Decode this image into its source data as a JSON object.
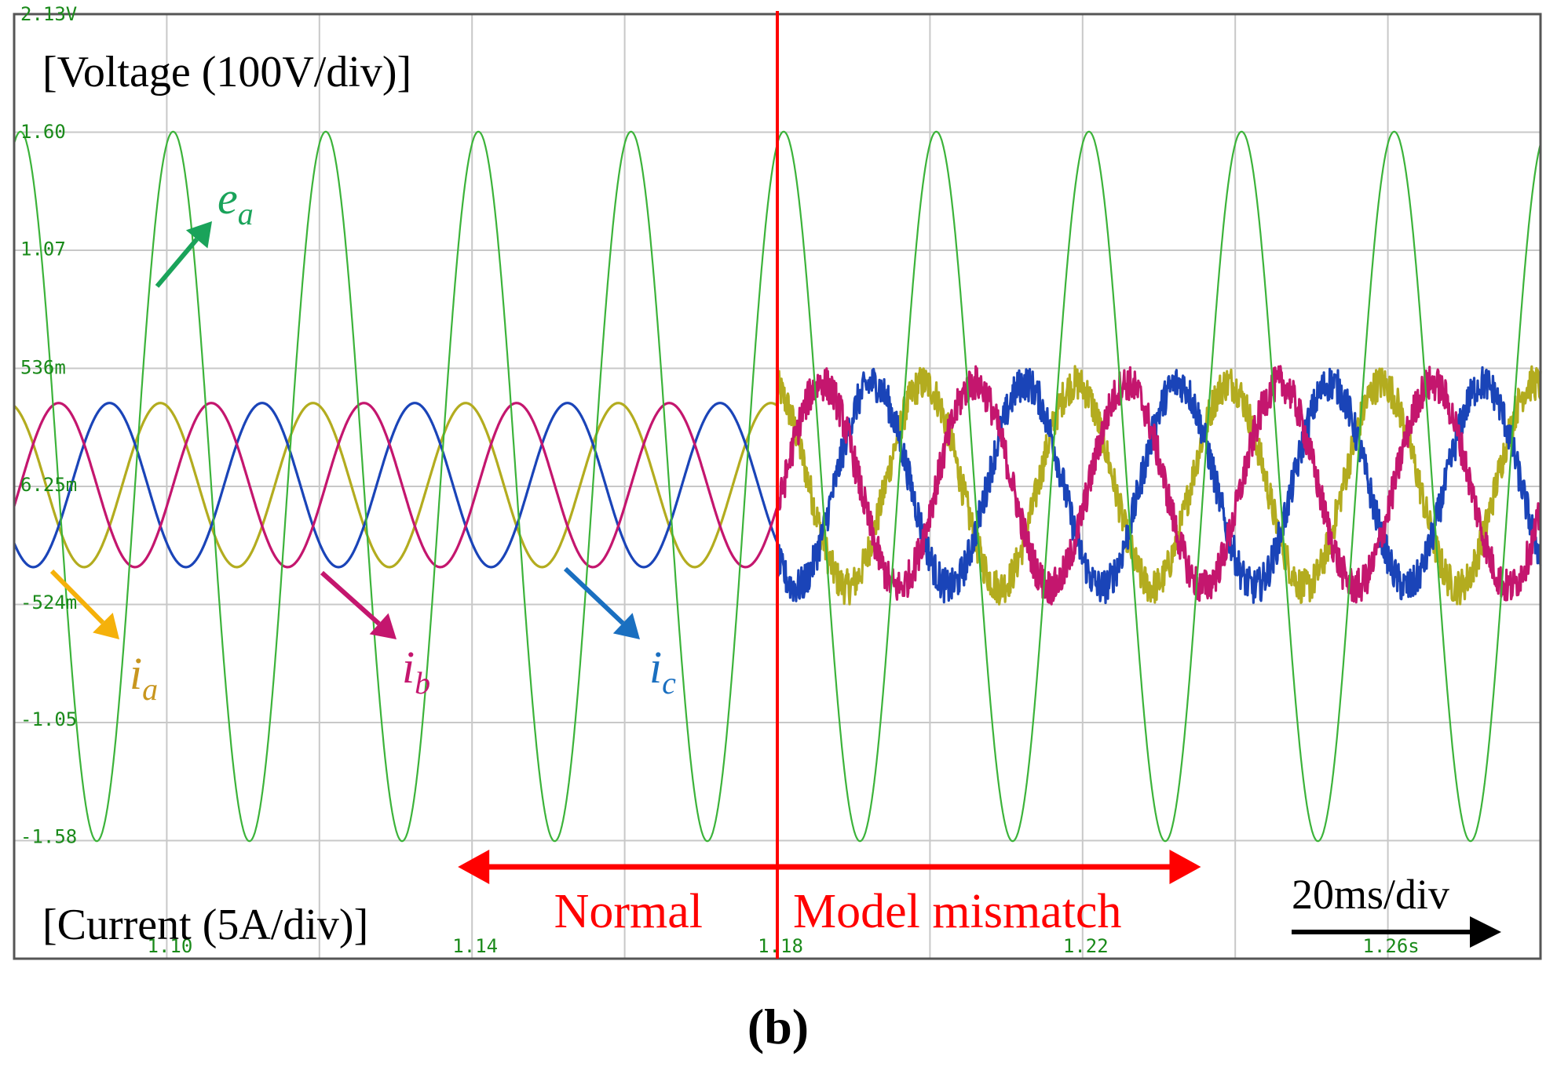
{
  "chart_data": {
    "type": "line",
    "title": "",
    "panel_label": "(b)",
    "voltage_scale_label": "[Voltage (100V/div)]",
    "current_scale_label": "[Current (5A/div)]",
    "time_scale_label": "20ms/div",
    "xlim": [
      1.08,
      1.28
    ],
    "ylim": [
      -2.13,
      2.13
    ],
    "x_ticks": [
      {
        "value": 1.1,
        "label": "1.10"
      },
      {
        "value": 1.14,
        "label": "1.14"
      },
      {
        "value": 1.18,
        "label": "1.18"
      },
      {
        "value": 1.22,
        "label": "1.22"
      },
      {
        "value": 1.26,
        "label": "1.26s"
      }
    ],
    "y_ticks": [
      {
        "value": 2.13,
        "label": "2.13V"
      },
      {
        "value": 1.6,
        "label": "1.60"
      },
      {
        "value": 1.07,
        "label": "1.07"
      },
      {
        "value": 0.536,
        "label": "536m"
      },
      {
        "value": 0.00625,
        "label": "6.25m"
      },
      {
        "value": -0.524,
        "label": "-524m"
      },
      {
        "value": -1.05,
        "label": "-1.05"
      },
      {
        "value": -1.58,
        "label": "-1.58"
      }
    ],
    "event_time": 1.18,
    "regions": [
      {
        "name": "normal",
        "label": "Normal",
        "start": 1.14,
        "end": 1.18
      },
      {
        "name": "model-mismatch",
        "label": "Model mismatch",
        "start": 1.18,
        "end": 1.2355
      }
    ],
    "series": [
      {
        "name": "e_a",
        "symbol": "e",
        "subscript": "a",
        "kind": "voltage",
        "color": "#3cb33a",
        "amplitude": 1.6,
        "offset": 0.0,
        "frequency_hz": 50,
        "phase_deg": 75,
        "amplitude_after_event": 1.6,
        "noise_after_event": 0.0
      },
      {
        "name": "i_a",
        "symbol": "i",
        "subscript": "a",
        "kind": "current",
        "color": "#b3ac1f",
        "amplitude": 0.37,
        "offset": 0.006,
        "frequency_hz": 50,
        "phase_deg": 105,
        "amplitude_after_event": 0.46,
        "noise_after_event": 0.08
      },
      {
        "name": "i_b",
        "symbol": "i",
        "subscript": "b",
        "kind": "current",
        "color": "#c4166e",
        "amplitude": 0.37,
        "offset": 0.006,
        "frequency_hz": 50,
        "phase_deg": -15,
        "amplitude_after_event": 0.46,
        "noise_after_event": 0.08
      },
      {
        "name": "i_c",
        "symbol": "i",
        "subscript": "c",
        "kind": "current",
        "color": "#1a44b8",
        "amplitude": 0.37,
        "offset": 0.006,
        "frequency_hz": 50,
        "phase_deg": -135,
        "amplitude_after_event": 0.46,
        "noise_after_event": 0.08
      }
    ],
    "legend_labels": [
      {
        "series": "e_a",
        "label_color": "#1aa35a",
        "arrow_color": "#1aa35a"
      },
      {
        "series": "i_a",
        "label_color": "#c8961e",
        "arrow_color": "#f5b10a"
      },
      {
        "series": "i_b",
        "label_color": "#c4166e",
        "arrow_color": "#c4166e"
      },
      {
        "series": "i_c",
        "label_color": "#1a6fc0",
        "arrow_color": "#1a6fc0"
      }
    ],
    "colors": {
      "grid": "#c8c8c8",
      "frame": "#555555",
      "tick_text": "#1a8a1a",
      "event_line": "#ff0000",
      "annotation": "#ff0000",
      "time_arrow": "#000000"
    }
  }
}
